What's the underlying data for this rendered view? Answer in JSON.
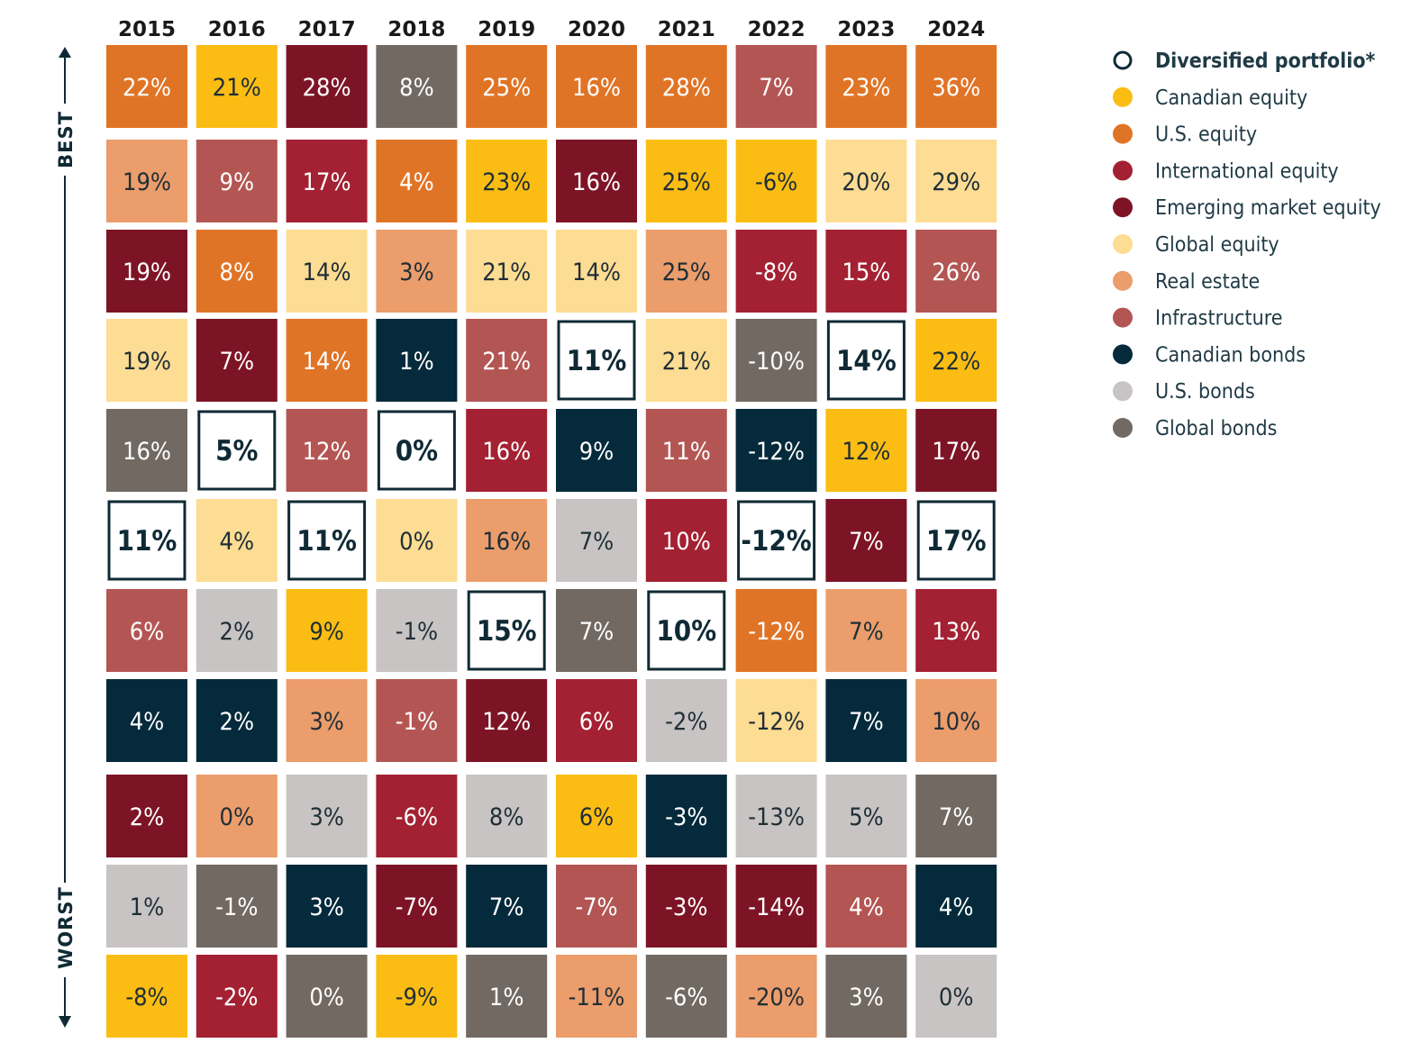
{
  "chart_data": {
    "type": "table",
    "title": "",
    "axis": {
      "top_label": "BEST",
      "bottom_label": "WORST"
    },
    "years": [
      "2015",
      "2016",
      "2017",
      "2018",
      "2019",
      "2020",
      "2021",
      "2022",
      "2023",
      "2024"
    ],
    "colors": {
      "portfolio": "#ffffff",
      "canadian_equity": "#fbbd13",
      "us_equity": "#e07426",
      "international_equity": "#a32132",
      "emerging_equity": "#7d1425",
      "global_equity": "#fddc93",
      "real_estate": "#eb9d6b",
      "infrastructure": "#b35653",
      "canadian_bonds": "#042a3b",
      "us_bonds": "#c8c4c3",
      "global_bonds": "#726962",
      "portfolio_border": "#0f2a35"
    },
    "legend": [
      {
        "key": "portfolio",
        "label": "Diversified portfolio*"
      },
      {
        "key": "canadian_equity",
        "label": "Canadian equity"
      },
      {
        "key": "us_equity",
        "label": "U.S. equity"
      },
      {
        "key": "international_equity",
        "label": "International equity"
      },
      {
        "key": "emerging_equity",
        "label": "Emerging market equity"
      },
      {
        "key": "global_equity",
        "label": "Global equity"
      },
      {
        "key": "real_estate",
        "label": "Real estate"
      },
      {
        "key": "infrastructure",
        "label": "Infrastructure"
      },
      {
        "key": "canadian_bonds",
        "label": "Canadian bonds"
      },
      {
        "key": "us_bonds",
        "label": "U.S. bonds"
      },
      {
        "key": "global_bonds",
        "label": "Global bonds"
      }
    ],
    "columns": [
      [
        {
          "v": "22%",
          "a": "us_equity"
        },
        {
          "v": "19%",
          "a": "real_estate"
        },
        {
          "v": "19%",
          "a": "emerging_equity"
        },
        {
          "v": "19%",
          "a": "global_equity"
        },
        {
          "v": "16%",
          "a": "global_bonds"
        },
        {
          "v": "11%",
          "a": "portfolio"
        },
        {
          "v": "6%",
          "a": "infrastructure"
        },
        {
          "v": "4%",
          "a": "canadian_bonds"
        },
        {
          "v": "2%",
          "a": "emerging_equity"
        },
        {
          "v": "1%",
          "a": "us_bonds"
        },
        {
          "v": "-8%",
          "a": "canadian_equity"
        }
      ],
      [
        {
          "v": "21%",
          "a": "canadian_equity"
        },
        {
          "v": "9%",
          "a": "infrastructure"
        },
        {
          "v": "8%",
          "a": "us_equity"
        },
        {
          "v": "7%",
          "a": "emerging_equity"
        },
        {
          "v": "5%",
          "a": "portfolio"
        },
        {
          "v": "4%",
          "a": "global_equity"
        },
        {
          "v": "2%",
          "a": "us_bonds"
        },
        {
          "v": "2%",
          "a": "canadian_bonds"
        },
        {
          "v": "0%",
          "a": "real_estate"
        },
        {
          "v": "-1%",
          "a": "global_bonds"
        },
        {
          "v": "-2%",
          "a": "international_equity"
        }
      ],
      [
        {
          "v": "28%",
          "a": "emerging_equity"
        },
        {
          "v": "17%",
          "a": "international_equity"
        },
        {
          "v": "14%",
          "a": "global_equity"
        },
        {
          "v": "14%",
          "a": "us_equity"
        },
        {
          "v": "12%",
          "a": "infrastructure"
        },
        {
          "v": "11%",
          "a": "portfolio"
        },
        {
          "v": "9%",
          "a": "canadian_equity"
        },
        {
          "v": "3%",
          "a": "real_estate"
        },
        {
          "v": "3%",
          "a": "us_bonds"
        },
        {
          "v": "3%",
          "a": "canadian_bonds"
        },
        {
          "v": "0%",
          "a": "global_bonds"
        }
      ],
      [
        {
          "v": "8%",
          "a": "global_bonds"
        },
        {
          "v": "4%",
          "a": "us_equity"
        },
        {
          "v": "3%",
          "a": "real_estate"
        },
        {
          "v": "1%",
          "a": "canadian_bonds"
        },
        {
          "v": "0%",
          "a": "portfolio"
        },
        {
          "v": "0%",
          "a": "global_equity"
        },
        {
          "v": "-1%",
          "a": "us_bonds"
        },
        {
          "v": "-1%",
          "a": "infrastructure"
        },
        {
          "v": "-6%",
          "a": "international_equity"
        },
        {
          "v": "-7%",
          "a": "emerging_equity"
        },
        {
          "v": "-9%",
          "a": "canadian_equity"
        }
      ],
      [
        {
          "v": "25%",
          "a": "us_equity"
        },
        {
          "v": "23%",
          "a": "canadian_equity"
        },
        {
          "v": "21%",
          "a": "global_equity"
        },
        {
          "v": "21%",
          "a": "infrastructure"
        },
        {
          "v": "16%",
          "a": "international_equity"
        },
        {
          "v": "16%",
          "a": "real_estate"
        },
        {
          "v": "15%",
          "a": "portfolio"
        },
        {
          "v": "12%",
          "a": "emerging_equity"
        },
        {
          "v": "8%",
          "a": "us_bonds"
        },
        {
          "v": "7%",
          "a": "canadian_bonds"
        },
        {
          "v": "1%",
          "a": "global_bonds"
        }
      ],
      [
        {
          "v": "16%",
          "a": "us_equity"
        },
        {
          "v": "16%",
          "a": "emerging_equity"
        },
        {
          "v": "14%",
          "a": "global_equity"
        },
        {
          "v": "11%",
          "a": "portfolio"
        },
        {
          "v": "9%",
          "a": "canadian_bonds"
        },
        {
          "v": "7%",
          "a": "us_bonds"
        },
        {
          "v": "7%",
          "a": "global_bonds"
        },
        {
          "v": "6%",
          "a": "international_equity"
        },
        {
          "v": "6%",
          "a": "canadian_equity"
        },
        {
          "v": "-7%",
          "a": "infrastructure"
        },
        {
          "v": "-11%",
          "a": "real_estate"
        }
      ],
      [
        {
          "v": "28%",
          "a": "us_equity"
        },
        {
          "v": "25%",
          "a": "canadian_equity"
        },
        {
          "v": "25%",
          "a": "real_estate"
        },
        {
          "v": "21%",
          "a": "global_equity"
        },
        {
          "v": "11%",
          "a": "infrastructure"
        },
        {
          "v": "10%",
          "a": "international_equity"
        },
        {
          "v": "10%",
          "a": "portfolio"
        },
        {
          "v": "-2%",
          "a": "us_bonds"
        },
        {
          "v": "-3%",
          "a": "canadian_bonds"
        },
        {
          "v": "-3%",
          "a": "emerging_equity"
        },
        {
          "v": "-6%",
          "a": "global_bonds"
        }
      ],
      [
        {
          "v": "7%",
          "a": "infrastructure"
        },
        {
          "v": "-6%",
          "a": "canadian_equity"
        },
        {
          "v": "-8%",
          "a": "international_equity"
        },
        {
          "v": "-10%",
          "a": "global_bonds"
        },
        {
          "v": "-12%",
          "a": "canadian_bonds"
        },
        {
          "v": "-12%",
          "a": "portfolio"
        },
        {
          "v": "-12%",
          "a": "us_equity"
        },
        {
          "v": "-12%",
          "a": "global_equity"
        },
        {
          "v": "-13%",
          "a": "us_bonds"
        },
        {
          "v": "-14%",
          "a": "emerging_equity"
        },
        {
          "v": "-20%",
          "a": "real_estate"
        }
      ],
      [
        {
          "v": "23%",
          "a": "us_equity"
        },
        {
          "v": "20%",
          "a": "global_equity"
        },
        {
          "v": "15%",
          "a": "international_equity"
        },
        {
          "v": "14%",
          "a": "portfolio"
        },
        {
          "v": "12%",
          "a": "canadian_equity"
        },
        {
          "v": "7%",
          "a": "emerging_equity"
        },
        {
          "v": "7%",
          "a": "real_estate"
        },
        {
          "v": "7%",
          "a": "canadian_bonds"
        },
        {
          "v": "5%",
          "a": "us_bonds"
        },
        {
          "v": "4%",
          "a": "infrastructure"
        },
        {
          "v": "3%",
          "a": "global_bonds"
        }
      ],
      [
        {
          "v": "36%",
          "a": "us_equity"
        },
        {
          "v": "29%",
          "a": "global_equity"
        },
        {
          "v": "26%",
          "a": "infrastructure"
        },
        {
          "v": "22%",
          "a": "canadian_equity"
        },
        {
          "v": "17%",
          "a": "emerging_equity"
        },
        {
          "v": "17%",
          "a": "portfolio"
        },
        {
          "v": "13%",
          "a": "international_equity"
        },
        {
          "v": "10%",
          "a": "real_estate"
        },
        {
          "v": "7%",
          "a": "global_bonds"
        },
        {
          "v": "4%",
          "a": "canadian_bonds"
        },
        {
          "v": "0%",
          "a": "us_bonds"
        }
      ]
    ]
  }
}
